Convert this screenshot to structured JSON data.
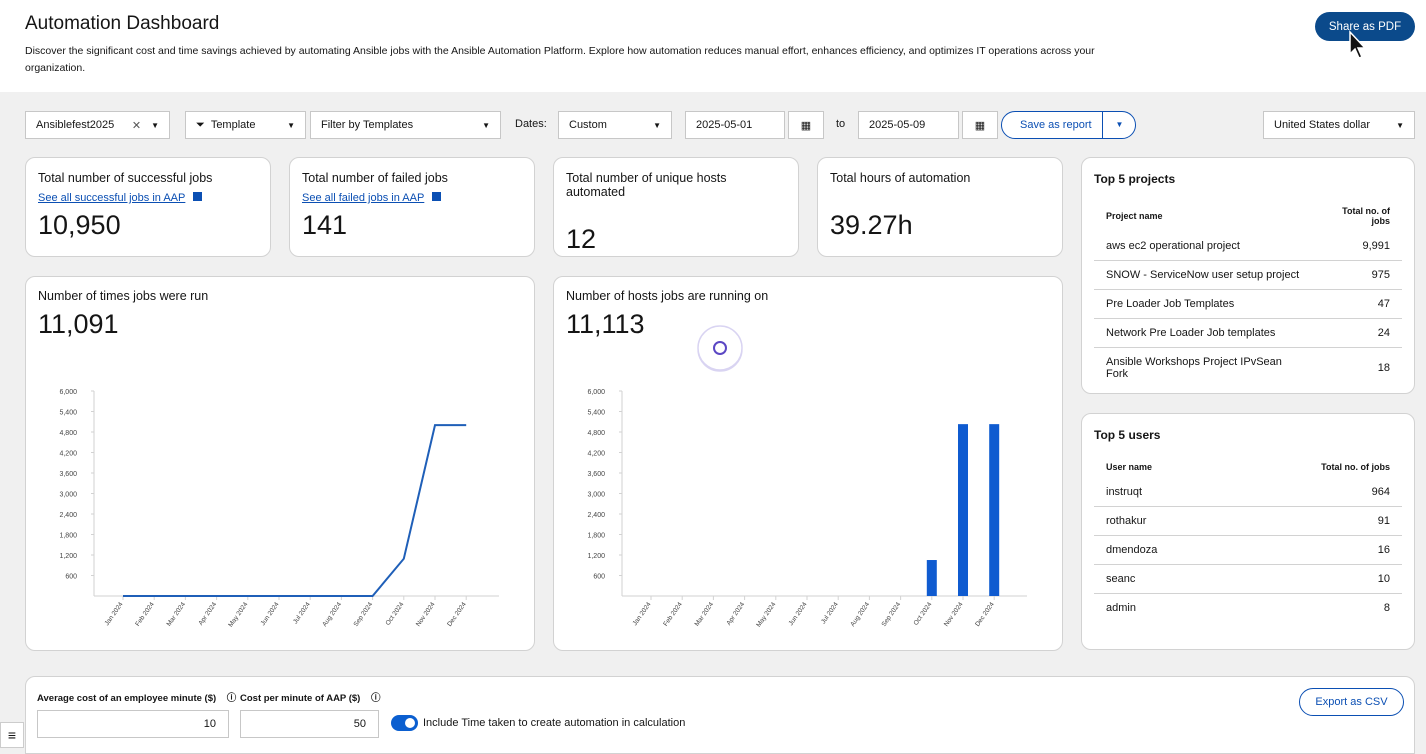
{
  "header": {
    "title": "Automation Dashboard",
    "description": "Discover the significant cost and time savings achieved by automating Ansible jobs with the Ansible Automation Platform. Explore how automation reduces manual effort, enhances efficiency, and optimizes IT operations across your organization.",
    "share_button": "Share as PDF"
  },
  "filters": {
    "tag": "Ansiblefest2025",
    "filter_type": "Template",
    "filter_placeholder": "Filter by Templates",
    "dates_label": "Dates:",
    "date_range": "Custom",
    "start_date": "2025-05-01",
    "to_label": "to",
    "end_date": "2025-05-09",
    "save_button": "Save as report",
    "currency": "United States dollar"
  },
  "stats": [
    {
      "label": "Total number of successful jobs",
      "link": "See all successful jobs in AAP",
      "value": "10,950"
    },
    {
      "label": "Total number of failed jobs",
      "link": "See all failed jobs in AAP",
      "value": "141"
    },
    {
      "label": "Total number of unique hosts automated",
      "value": "12"
    },
    {
      "label": "Total hours of automation",
      "value": "39.27h"
    }
  ],
  "charts": [
    {
      "type": "line",
      "title": "Number of times jobs were run",
      "total": "11,091",
      "categories": [
        "Jan 2024",
        "Feb 2024",
        "Mar 2024",
        "Apr 2024",
        "May 2024",
        "Jun 2024",
        "Jul 2024",
        "Aug 2024",
        "Sep 2024",
        "Oct 2024",
        "Nov 2024",
        "Dec 2024"
      ],
      "values": [
        0,
        0,
        0,
        0,
        0,
        0,
        0,
        0,
        0,
        1091,
        5000,
        5000
      ],
      "color": "#1f5fb8",
      "ylim": [
        0,
        6000
      ],
      "yticks": [
        600,
        {
          "value": 1200,
          "label": "1,200"
        },
        {
          "value": 1800,
          "label": "1,800"
        },
        {
          "value": 2400,
          "label": "2,400"
        },
        {
          "value": 3000,
          "label": "3,000"
        },
        {
          "value": 3600,
          "label": "3,600"
        },
        {
          "value": 4200,
          "label": "4,200"
        },
        {
          "value": 4800,
          "label": "4,800"
        },
        {
          "value": 5400,
          "label": "5,400"
        },
        {
          "value": 6000,
          "label": "6,000"
        }
      ]
    },
    {
      "type": "bar",
      "title": "Number of hosts jobs are running on",
      "total": "11,113",
      "categories": [
        "Jan 2024",
        "Feb 2024",
        "Mar 2024",
        "Apr 2024",
        "May 2024",
        "Jun 2024",
        "Jul 2024",
        "Aug 2024",
        "Sep 2024",
        "Oct 2024",
        "Nov 2024",
        "Dec 2024"
      ],
      "values": [
        0,
        0,
        0,
        0,
        0,
        0,
        0,
        0,
        0,
        1053,
        5030,
        5030
      ],
      "color": "#0f5bd0",
      "ylim": [
        0,
        6000
      ],
      "yticks": [
        600,
        {
          "value": 1200,
          "label": "1,200"
        },
        {
          "value": 1800,
          "label": "1,800"
        },
        {
          "value": 2400,
          "label": "2,400"
        },
        {
          "value": 3000,
          "label": "3,000"
        },
        {
          "value": 3600,
          "label": "3,600"
        },
        {
          "value": 4200,
          "label": "4,200"
        },
        {
          "value": 4800,
          "label": "4,800"
        },
        {
          "value": 5400,
          "label": "5,400"
        },
        {
          "value": 6000,
          "label": "6,000"
        }
      ]
    }
  ],
  "top_projects": {
    "title": "Top 5 projects",
    "columns": [
      "Project name",
      "Total no. of jobs"
    ],
    "rows": [
      [
        "aws ec2 operational project",
        "9,991"
      ],
      [
        "SNOW - ServiceNow user setup project",
        "975"
      ],
      [
        "Pre Loader Job Templates",
        "47"
      ],
      [
        "Network Pre Loader Job templates",
        "24"
      ],
      [
        "Ansible Workshops Project IPvSean Fork",
        "18"
      ]
    ]
  },
  "top_users": {
    "title": "Top 5 users",
    "columns": [
      "User name",
      "Total no. of jobs"
    ],
    "rows": [
      [
        "instruqt",
        "964"
      ],
      [
        "rothakur",
        "91"
      ],
      [
        "dmendoza",
        "16"
      ],
      [
        "seanc",
        "10"
      ],
      [
        "admin",
        "8"
      ]
    ]
  },
  "cost": {
    "employee_label": "Average cost of an employee minute ($)",
    "employee_value": "10",
    "aap_label": "Cost per minute of AAP ($)",
    "aap_value": "50",
    "toggle_label": "Include Time taken to create automation in calculation",
    "export_button": "Export as CSV"
  }
}
